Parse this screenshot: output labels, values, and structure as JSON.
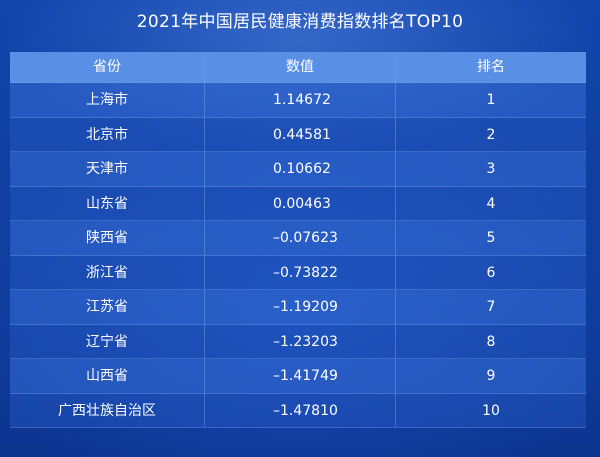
{
  "chart_data": {
    "type": "table",
    "title": "2021年中国居民健康消费指数排名TOP10",
    "columns": [
      "省份",
      "数值",
      "排名"
    ],
    "rows": [
      {
        "province": "上海市",
        "value": "1.14672",
        "rank": "1"
      },
      {
        "province": "北京市",
        "value": "0.44581",
        "rank": "2"
      },
      {
        "province": "天津市",
        "value": "0.10662",
        "rank": "3"
      },
      {
        "province": "山东省",
        "value": "0.00463",
        "rank": "4"
      },
      {
        "province": "陕西省",
        "value": "–0.07623",
        "rank": "5"
      },
      {
        "province": "浙江省",
        "value": "–0.73822",
        "rank": "6"
      },
      {
        "province": "江苏省",
        "value": "–1.19209",
        "rank": "7"
      },
      {
        "province": "辽宁省",
        "value": "–1.23203",
        "rank": "8"
      },
      {
        "province": "山西省",
        "value": "–1.41749",
        "rank": "9"
      },
      {
        "province": "广西壮族自治区",
        "value": "–1.47810",
        "rank": "10"
      }
    ]
  },
  "colors": {
    "background": "#103f9c",
    "header": "#5a8fe6",
    "text": "#ffffff"
  }
}
